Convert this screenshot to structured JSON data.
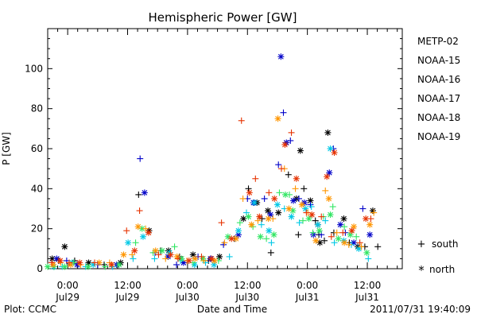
{
  "chart_data": {
    "type": "scatter",
    "title": "Hemispheric Power [GW]",
    "ylabel": "P [GW]",
    "xlabel": "Date and Time",
    "ylim": [
      0,
      120
    ],
    "yticks": [
      0,
      20,
      40,
      60,
      80,
      100
    ],
    "xlim": [
      -4,
      67
    ],
    "x_unit": "hours from 2011-07-29 00:00 UT",
    "xticks": [
      {
        "x": 0,
        "time": "0:00",
        "date": "Jul29"
      },
      {
        "x": 12,
        "time": "12:00",
        "date": "Jul29"
      },
      {
        "x": 24,
        "time": "0:00",
        "date": "Jul30"
      },
      {
        "x": 36,
        "time": "12:00",
        "date": "Jul30"
      },
      {
        "x": 48,
        "time": "0:00",
        "date": "Jul31"
      },
      {
        "x": 60,
        "time": "12:00",
        "date": "Jul31"
      }
    ],
    "hemisphere_markers": [
      {
        "symbol": "+",
        "label": "south"
      },
      {
        "symbol": "*",
        "label": "north"
      }
    ],
    "series": [
      {
        "name": "METP-02",
        "color": "#000000",
        "points": [
          [
            -4.8,
            3
          ],
          [
            -3.1,
            5
          ],
          [
            -1.8,
            4
          ],
          [
            -0.6,
            11
          ],
          [
            1.4,
            4
          ],
          [
            4.2,
            3
          ],
          [
            7.3,
            2
          ],
          [
            10.6,
            3
          ],
          [
            14.2,
            37
          ],
          [
            16.3,
            19
          ],
          [
            18.6,
            9
          ],
          [
            20.2,
            9
          ],
          [
            22.4,
            6
          ],
          [
            25.1,
            7
          ],
          [
            28.2,
            4
          ],
          [
            30.4,
            6
          ],
          [
            33.4,
            15
          ],
          [
            35.2,
            25
          ],
          [
            36.2,
            40
          ],
          [
            37.9,
            33
          ],
          [
            38.9,
            25
          ],
          [
            40.1,
            29
          ],
          [
            40.7,
            8
          ],
          [
            42.2,
            28
          ],
          [
            44.2,
            47
          ],
          [
            45.8,
            35
          ],
          [
            46.2,
            17
          ],
          [
            46.6,
            59
          ],
          [
            47.3,
            40
          ],
          [
            48.6,
            34
          ],
          [
            49.6,
            24
          ],
          [
            50.1,
            22
          ],
          [
            50.3,
            17
          ],
          [
            50.5,
            13
          ],
          [
            51.4,
            14
          ],
          [
            52.1,
            68
          ],
          [
            53.3,
            18
          ],
          [
            55.3,
            25
          ],
          [
            56.4,
            13
          ],
          [
            58.1,
            11
          ],
          [
            59.5,
            11
          ],
          [
            61.1,
            29
          ],
          [
            62.1,
            11
          ]
        ]
      },
      {
        "name": "NOAA-15",
        "color": "#0000c8",
        "points": [
          [
            -4.5,
            1
          ],
          [
            -3.2,
            3
          ],
          [
            -2.2,
            5
          ],
          [
            -0.2,
            4
          ],
          [
            1.9,
            2
          ],
          [
            6.0,
            2
          ],
          [
            9.8,
            2
          ],
          [
            14.5,
            55
          ],
          [
            15.4,
            38
          ],
          [
            17.5,
            8
          ],
          [
            20.1,
            6
          ],
          [
            21.8,
            2
          ],
          [
            23.2,
            3
          ],
          [
            26.1,
            6
          ],
          [
            28.6,
            5
          ],
          [
            31.2,
            12
          ],
          [
            34.2,
            17
          ],
          [
            36.0,
            35
          ],
          [
            37.2,
            33
          ],
          [
            39.4,
            35
          ],
          [
            40.6,
            27
          ],
          [
            42.2,
            52
          ],
          [
            42.7,
            106
          ],
          [
            43.2,
            78
          ],
          [
            43.8,
            63
          ],
          [
            44.6,
            64
          ],
          [
            45.2,
            34
          ],
          [
            46.3,
            35
          ],
          [
            47.4,
            33
          ],
          [
            48.6,
            32
          ],
          [
            49.2,
            17
          ],
          [
            50.8,
            17
          ],
          [
            52.4,
            48
          ],
          [
            53.2,
            60
          ],
          [
            54.6,
            22
          ],
          [
            55.6,
            18
          ],
          [
            57.3,
            13
          ],
          [
            59.1,
            30
          ],
          [
            60.5,
            17
          ]
        ]
      },
      {
        "name": "NOAA-16",
        "color": "#00c8e6",
        "points": [
          [
            -4.2,
            2
          ],
          [
            -2.8,
            1
          ],
          [
            -1.1,
            1
          ],
          [
            0.9,
            3
          ],
          [
            3.6,
            1
          ],
          [
            5.1,
            2
          ],
          [
            9.0,
            1
          ],
          [
            12.1,
            13
          ],
          [
            13.1,
            5
          ],
          [
            15.1,
            16
          ],
          [
            17.4,
            5
          ],
          [
            20.4,
            8
          ],
          [
            22.6,
            4
          ],
          [
            25.4,
            2
          ],
          [
            27.6,
            3
          ],
          [
            29.3,
            2
          ],
          [
            32.4,
            6
          ],
          [
            34.2,
            19
          ],
          [
            35.8,
            28
          ],
          [
            37.4,
            33
          ],
          [
            38.8,
            22
          ],
          [
            40.3,
            19
          ],
          [
            40.8,
            13
          ],
          [
            42.0,
            32
          ],
          [
            43.4,
            30
          ],
          [
            44.8,
            26
          ],
          [
            46.4,
            23
          ],
          [
            47.6,
            30
          ],
          [
            48.8,
            31
          ],
          [
            50.1,
            22
          ],
          [
            51.6,
            24
          ],
          [
            52.6,
            60
          ],
          [
            53.4,
            13
          ],
          [
            55.3,
            14
          ],
          [
            56.8,
            12
          ],
          [
            58.3,
            10
          ],
          [
            60.2,
            5
          ]
        ]
      },
      {
        "name": "NOAA-17",
        "color": "#32e664",
        "points": [
          [
            -4.0,
            1
          ],
          [
            -2.7,
            1
          ],
          [
            -0.6,
            1
          ],
          [
            1.2,
            3
          ],
          [
            4.1,
            1
          ],
          [
            7.5,
            1
          ],
          [
            10.3,
            2
          ],
          [
            13.6,
            13
          ],
          [
            14.9,
            20
          ],
          [
            17.1,
            8
          ],
          [
            18.9,
            9
          ],
          [
            21.4,
            11
          ],
          [
            22.8,
            5
          ],
          [
            25.1,
            3
          ],
          [
            27.1,
            5
          ],
          [
            30.2,
            4
          ],
          [
            32.1,
            16
          ],
          [
            34.5,
            23
          ],
          [
            36.2,
            26
          ],
          [
            37.1,
            21
          ],
          [
            38.6,
            16
          ],
          [
            39.8,
            15
          ],
          [
            41.3,
            17
          ],
          [
            42.4,
            38
          ],
          [
            43.6,
            37
          ],
          [
            44.4,
            37
          ],
          [
            45.1,
            29
          ],
          [
            47.1,
            24
          ],
          [
            48.3,
            25
          ],
          [
            49.1,
            18
          ],
          [
            50.4,
            19
          ],
          [
            51.2,
            26
          ],
          [
            52.6,
            27
          ],
          [
            53.1,
            31
          ],
          [
            54.2,
            15
          ],
          [
            55.4,
            21
          ],
          [
            56.6,
            17
          ],
          [
            57.8,
            16
          ],
          [
            59.9,
            8
          ]
        ]
      },
      {
        "name": "NOAA-18",
        "color": "#ff9600",
        "points": [
          [
            -4.5,
            2
          ],
          [
            -2.9,
            2
          ],
          [
            -1.4,
            3
          ],
          [
            0.6,
            2
          ],
          [
            2.6,
            2
          ],
          [
            6.3,
            3
          ],
          [
            8.4,
            3
          ],
          [
            11.2,
            7
          ],
          [
            12.9,
            7
          ],
          [
            14.1,
            21
          ],
          [
            15.6,
            20
          ],
          [
            17.6,
            9
          ],
          [
            19.6,
            5
          ],
          [
            21.9,
            6
          ],
          [
            23.9,
            4
          ],
          [
            25.5,
            5
          ],
          [
            27.3,
            4
          ],
          [
            29.4,
            4
          ],
          [
            31.4,
            13
          ],
          [
            33.7,
            15
          ],
          [
            35.1,
            35
          ],
          [
            36.8,
            22
          ],
          [
            38.1,
            24
          ],
          [
            40.2,
            25
          ],
          [
            41.1,
            25
          ],
          [
            42.1,
            75
          ],
          [
            43.4,
            50
          ],
          [
            44.3,
            30
          ],
          [
            45.6,
            40
          ],
          [
            46.9,
            32
          ],
          [
            48.1,
            28
          ],
          [
            49.7,
            14
          ],
          [
            51.6,
            39
          ],
          [
            52.3,
            35
          ],
          [
            53.9,
            18
          ],
          [
            55.4,
            13
          ],
          [
            56.3,
            12
          ],
          [
            57.3,
            21
          ],
          [
            58.8,
            11
          ],
          [
            60.5,
            22
          ],
          [
            61.3,
            28
          ]
        ]
      },
      {
        "name": "NOAA-19",
        "color": "#e63200",
        "points": [
          [
            -4.7,
            2
          ],
          [
            -3.2,
            3
          ],
          [
            -1.5,
            4
          ],
          [
            0.3,
            3
          ],
          [
            2.4,
            3
          ],
          [
            5.4,
            3
          ],
          [
            8.8,
            2
          ],
          [
            11.8,
            19
          ],
          [
            13.4,
            9
          ],
          [
            14.4,
            29
          ],
          [
            16.2,
            18
          ],
          [
            18.2,
            7
          ],
          [
            20.6,
            7
          ],
          [
            22.1,
            5
          ],
          [
            24.3,
            4
          ],
          [
            26.8,
            6
          ],
          [
            28.8,
            5
          ],
          [
            30.8,
            23
          ],
          [
            32.8,
            15
          ],
          [
            34.8,
            74
          ],
          [
            36.4,
            38
          ],
          [
            37.6,
            45
          ],
          [
            38.4,
            26
          ],
          [
            40.3,
            38
          ],
          [
            41.4,
            35
          ],
          [
            42.8,
            50
          ],
          [
            43.5,
            62
          ],
          [
            44.8,
            68
          ],
          [
            45.8,
            45
          ],
          [
            47.8,
            28
          ],
          [
            48.9,
            27
          ],
          [
            50.8,
            26
          ],
          [
            51.9,
            46
          ],
          [
            52.8,
            16
          ],
          [
            53.4,
            58
          ],
          [
            55.1,
            18
          ],
          [
            56.9,
            19
          ],
          [
            58.5,
            13
          ],
          [
            59.7,
            25
          ],
          [
            60.7,
            25
          ]
        ]
      }
    ]
  },
  "footer": {
    "plot_credit": "Plot: CCMC",
    "timestamp": "2011/07/31  19:40:09"
  }
}
